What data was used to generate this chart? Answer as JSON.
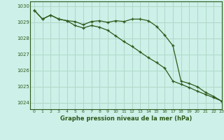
{
  "title": "Graphe pression niveau de la mer (hPa)",
  "bg_color": "#cdf0e8",
  "grid_color": "#b0d8c8",
  "line_color": "#2d5a1b",
  "xlim": [
    -0.5,
    23
  ],
  "ylim": [
    1023.6,
    1030.3
  ],
  "yticks": [
    1024,
    1025,
    1026,
    1027,
    1028,
    1029,
    1030
  ],
  "xticks": [
    0,
    1,
    2,
    3,
    4,
    5,
    6,
    7,
    8,
    9,
    10,
    11,
    12,
    13,
    14,
    15,
    16,
    17,
    18,
    19,
    20,
    21,
    22,
    23
  ],
  "series1_x": [
    0,
    1,
    2,
    3,
    4,
    5,
    6,
    7,
    8,
    9,
    10,
    11,
    12,
    13,
    14,
    15,
    16,
    17,
    18,
    19,
    20,
    21,
    22,
    23
  ],
  "series1_y": [
    1029.75,
    1029.2,
    1029.45,
    1029.2,
    1029.1,
    1029.05,
    1028.85,
    1029.05,
    1029.1,
    1029.0,
    1029.1,
    1029.05,
    1029.2,
    1029.2,
    1029.1,
    1028.75,
    1028.2,
    1027.55,
    1025.35,
    1025.2,
    1025.0,
    1024.65,
    1024.4,
    1024.1
  ],
  "series2_x": [
    0,
    1,
    2,
    3,
    4,
    5,
    6,
    7,
    8,
    9,
    10,
    11,
    12,
    13,
    14,
    15,
    16,
    17,
    18,
    19,
    20,
    21,
    22,
    23
  ],
  "series2_y": [
    1029.75,
    1029.2,
    1029.45,
    1029.2,
    1029.1,
    1028.8,
    1028.65,
    1028.8,
    1028.7,
    1028.5,
    1028.15,
    1027.8,
    1027.5,
    1027.15,
    1026.8,
    1026.5,
    1026.15,
    1025.35,
    1025.15,
    1024.95,
    1024.72,
    1024.52,
    1024.32,
    1024.1
  ]
}
